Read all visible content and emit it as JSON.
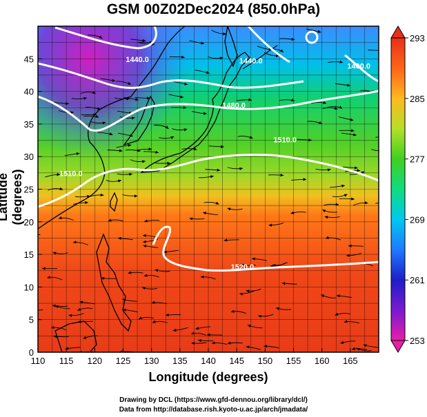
{
  "title": "GSM 00Z02Dec2024 (850.0hPa)",
  "xlabel": "Longitude (degrees)",
  "ylabel": "Latitude  (degrees)",
  "credits": [
    "Drawing by DCL (https://www.gfd-dennou.org/library/dcl/)",
    "Data from http://database.rish.kyoto-u.ac.jp/arch/jmadata/"
  ],
  "chart_data": {
    "type": "heatmap",
    "x_range": [
      110,
      170
    ],
    "y_range": [
      0,
      50
    ],
    "x_ticks": [
      "110",
      "115",
      "120",
      "125",
      "130",
      "135",
      "140",
      "145",
      "150",
      "155",
      "160",
      "165"
    ],
    "y_ticks": [
      "0",
      "5",
      "10",
      "15",
      "20",
      "25",
      "30",
      "35",
      "40",
      "45"
    ],
    "colorbar": {
      "min": 253,
      "max": 293,
      "ticks": [
        "253",
        "261",
        "269",
        "277",
        "285",
        "293"
      ]
    },
    "contour_labels": [
      {
        "text": "1520.0",
        "lon": 146,
        "lat": 12.7
      },
      {
        "text": "1480.0",
        "lon": 144.5,
        "lat": 37.5
      },
      {
        "text": "1440.0",
        "lon": 127.5,
        "lat": 44.5
      },
      {
        "text": "1440.0",
        "lon": 147.5,
        "lat": 44.3
      },
      {
        "text": "1400.0",
        "lon": 166.5,
        "lat": 43.5
      },
      {
        "text": "1510.0",
        "lon": 153.5,
        "lat": 32.2
      },
      {
        "text": "1510.0",
        "lon": 115.8,
        "lat": 27
      }
    ]
  }
}
